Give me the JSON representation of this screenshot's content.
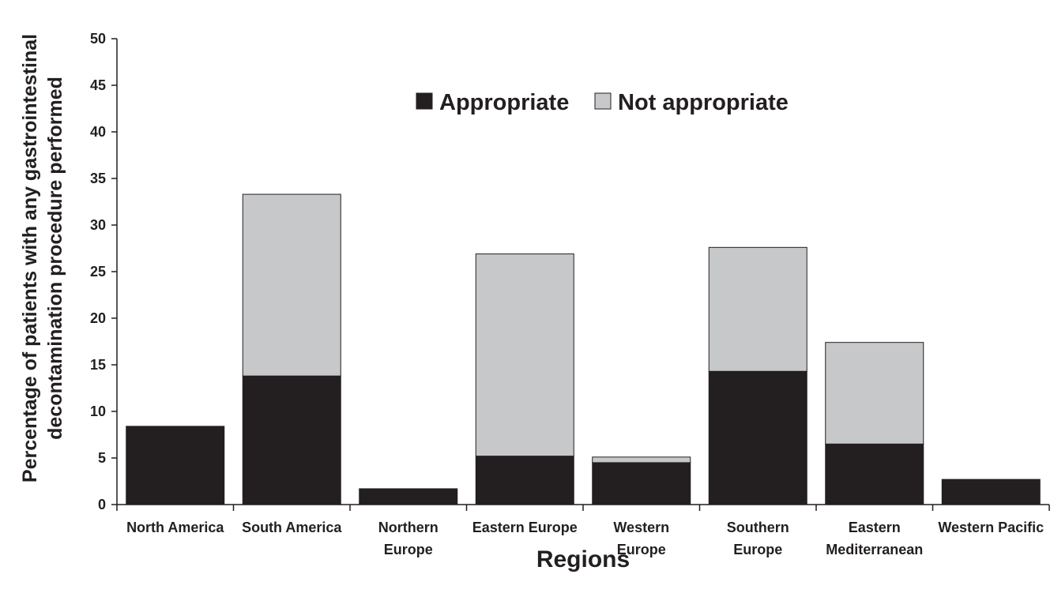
{
  "chart_data": {
    "type": "bar",
    "stacked": true,
    "categories": [
      [
        "North America"
      ],
      [
        "South America"
      ],
      [
        "Northern",
        "Europe"
      ],
      [
        "Eastern Europe"
      ],
      [
        "Western",
        "Europe"
      ],
      [
        "Southern",
        "Europe"
      ],
      [
        "Eastern",
        "Mediterranean"
      ],
      [
        "Western Pacific"
      ]
    ],
    "series": [
      {
        "name": "Appropriate",
        "color": "#231f20",
        "values": [
          8.4,
          13.8,
          1.7,
          5.2,
          4.5,
          14.3,
          6.5,
          2.7
        ]
      },
      {
        "name": "Not appropriate",
        "color": "#c7c8ca",
        "values": [
          0,
          19.5,
          0,
          21.7,
          0.6,
          13.3,
          10.9,
          0
        ]
      }
    ],
    "xlabel": "Regions",
    "ylabel": [
      "Percentage of patients with any gastrointestinal",
      "decontamination procedure performed"
    ],
    "ylim": [
      0,
      50
    ],
    "yticks": [
      0,
      5,
      10,
      15,
      20,
      25,
      30,
      35,
      40,
      45,
      50
    ],
    "grid": false,
    "legend_position": "top-center"
  }
}
